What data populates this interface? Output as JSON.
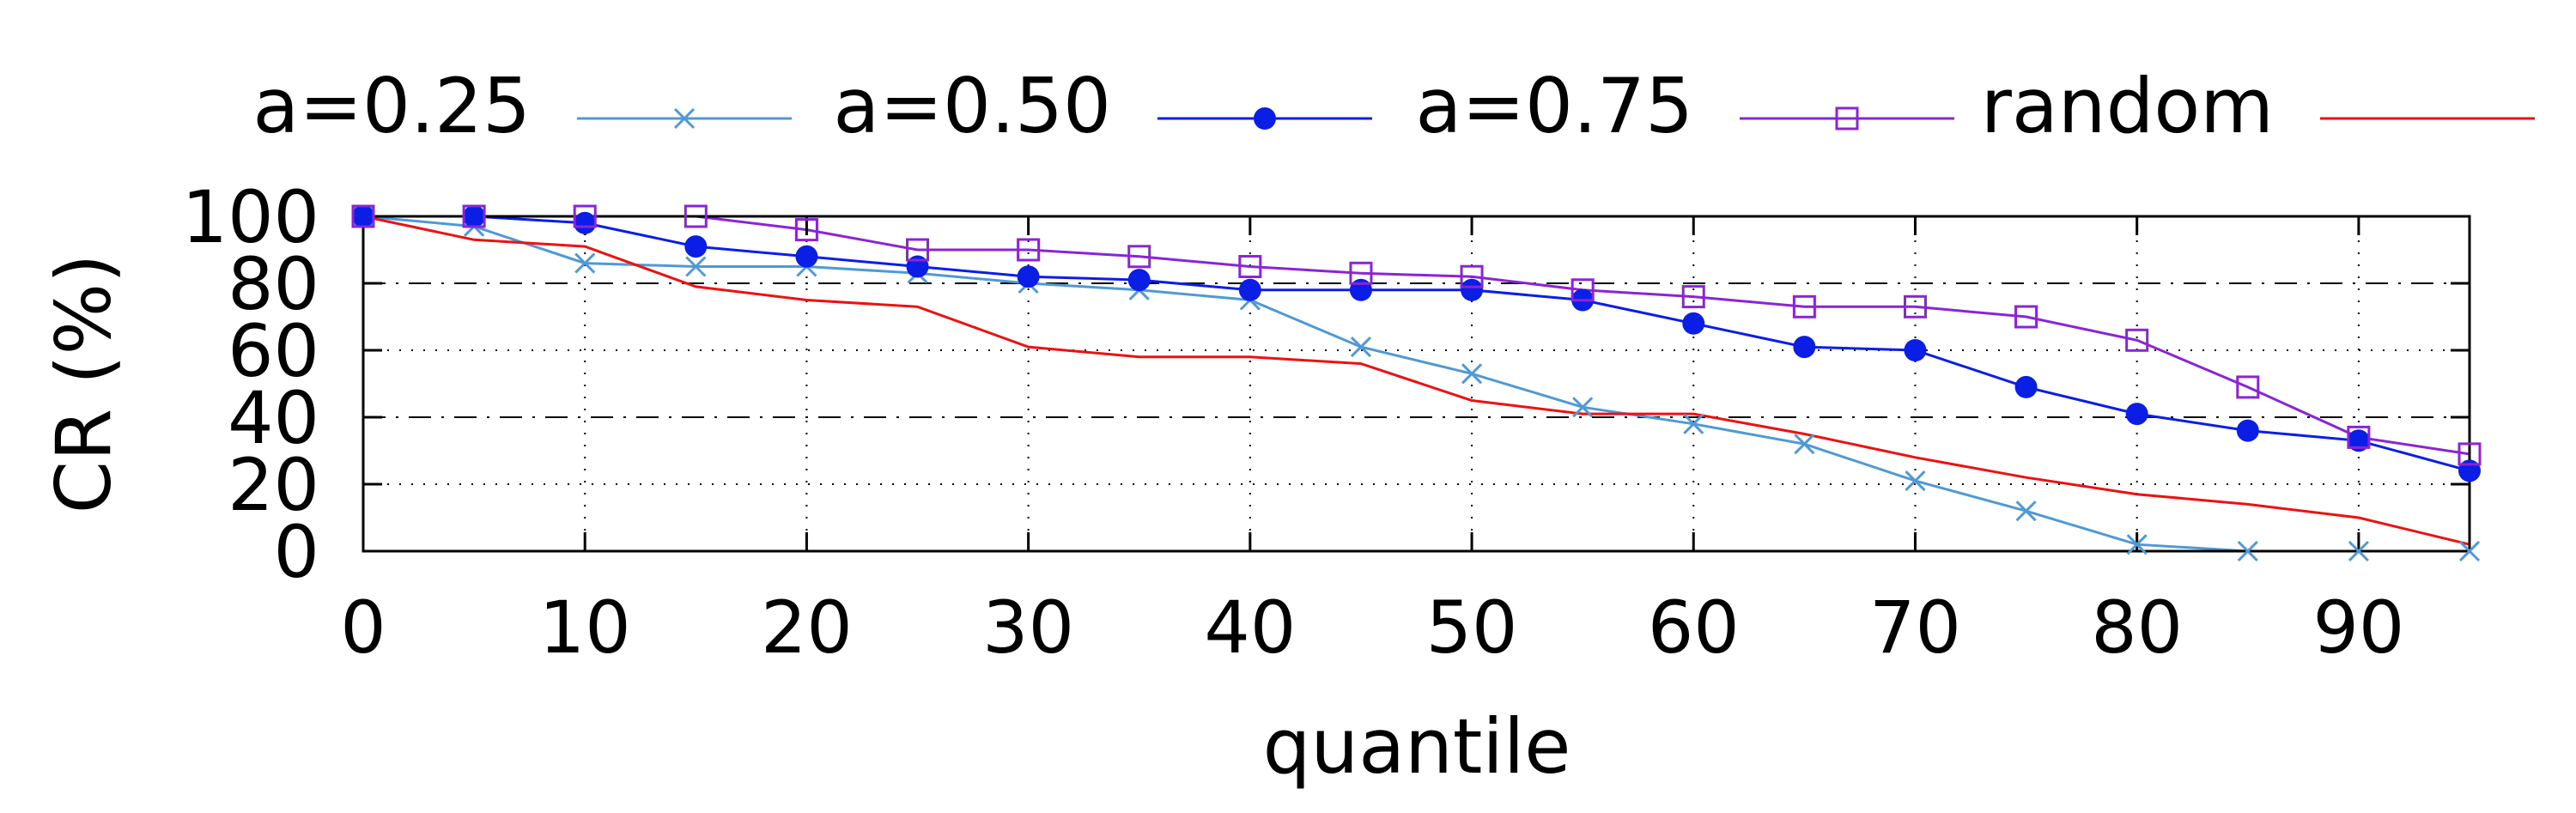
{
  "chart_data": {
    "type": "line",
    "title": "",
    "xlabel": "quantile",
    "ylabel": "CR (%)",
    "xlim": [
      0,
      95
    ],
    "ylim": [
      0,
      100
    ],
    "x_ticks": [
      0,
      10,
      20,
      30,
      40,
      50,
      60,
      70,
      80,
      90
    ],
    "y_ticks": [
      0,
      20,
      40,
      60,
      80,
      100
    ],
    "grid": "major grid lines dotted; y=40 and y=80 dash-dot",
    "legend_position": "top",
    "x": [
      0,
      5,
      10,
      15,
      20,
      25,
      30,
      35,
      40,
      45,
      50,
      55,
      60,
      65,
      70,
      75,
      80,
      85,
      90,
      95
    ],
    "series": [
      {
        "name": "a=0.25",
        "color": "#4f9ad6",
        "marker": "cross",
        "values": [
          100,
          97,
          86,
          85,
          85,
          83,
          80,
          78,
          75,
          61,
          53,
          43,
          38,
          32,
          21,
          12,
          2,
          0,
          0,
          0
        ]
      },
      {
        "name": "a=0.50",
        "color": "#0b1ee6",
        "marker": "filled-circle",
        "values": [
          100,
          100,
          98,
          91,
          88,
          85,
          82,
          81,
          78,
          78,
          78,
          75,
          68,
          61,
          60,
          49,
          41,
          36,
          33,
          24
        ]
      },
      {
        "name": "a=0.75",
        "color": "#8a24d6",
        "marker": "open-square",
        "values": [
          100,
          100,
          100,
          100,
          96,
          90,
          90,
          88,
          85,
          83,
          82,
          78,
          76,
          73,
          73,
          70,
          63,
          49,
          34,
          29
        ]
      },
      {
        "name": "random",
        "color": "#ee1111",
        "marker": "none",
        "values": [
          100,
          93,
          91,
          79,
          75,
          73,
          61,
          58,
          58,
          56,
          45,
          41,
          41,
          35,
          28,
          22,
          17,
          14,
          10,
          2
        ]
      }
    ]
  }
}
